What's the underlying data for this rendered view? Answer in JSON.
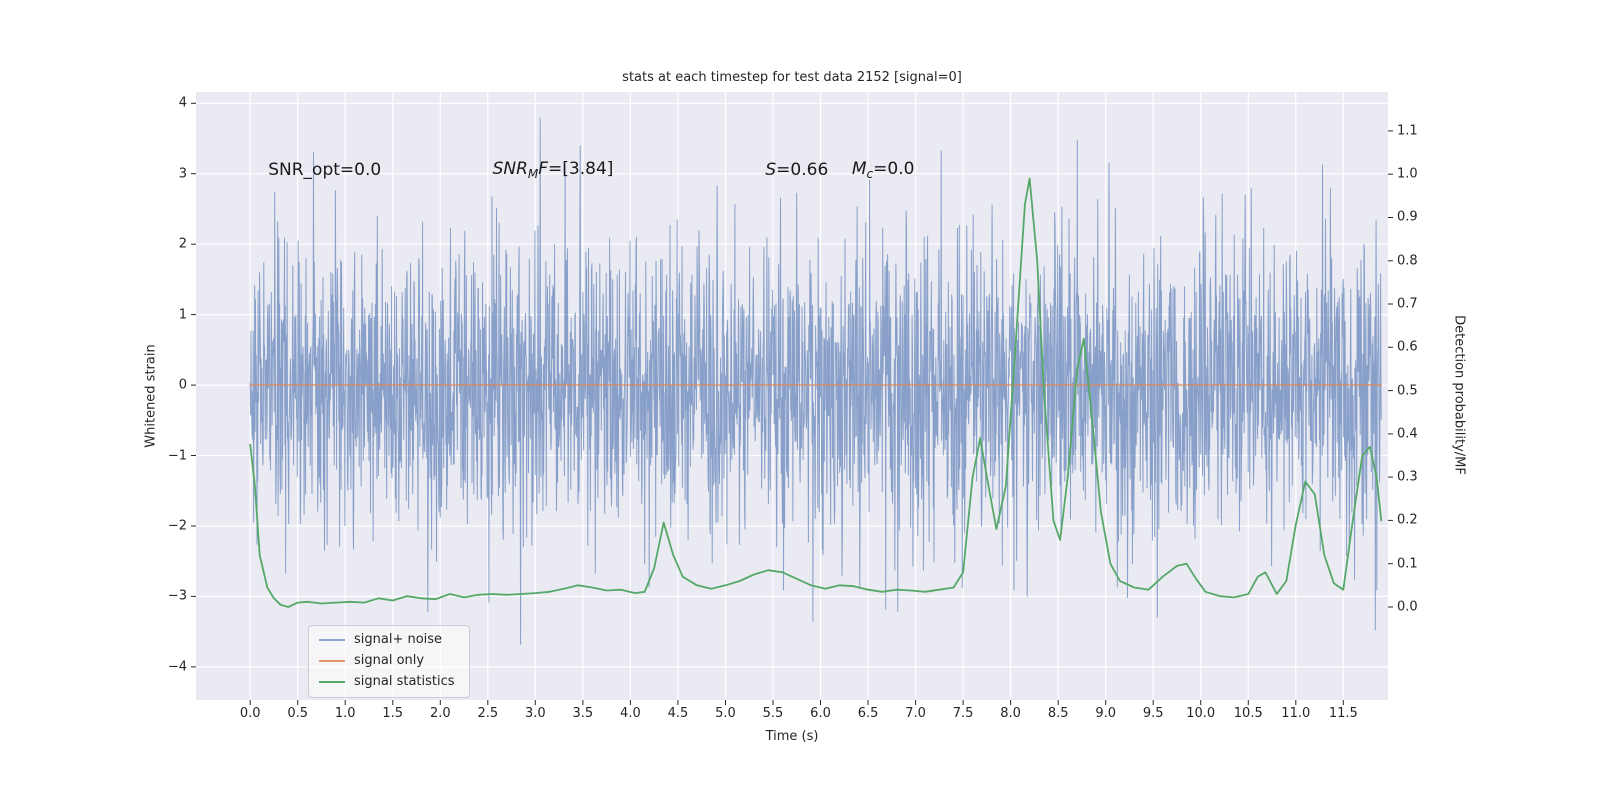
{
  "chart_data": {
    "type": "line",
    "title": "stats at each timestep for test data 2152 [signal=0]",
    "xlabel": "Time (s)",
    "ylabel_left": "Whitened strain",
    "ylabel_right": "Detection probability/MF",
    "xlim": [
      -0.57,
      11.97
    ],
    "ylim_left": [
      -4.47,
      4.16
    ],
    "ylim_right": [
      -0.215,
      1.19
    ],
    "grid": true,
    "legend_position": "lower left",
    "colors": {
      "axes_bg": "#eaeaf2",
      "grid": "#ffffff",
      "tick": "#262626",
      "noise_blue": "#4c72b0",
      "signal_orange": "#dd8452",
      "stats_green": "#55a868"
    },
    "xticks": [
      0,
      0.5,
      1,
      1.5,
      2,
      2.5,
      3,
      3.5,
      4,
      4.5,
      5,
      5.5,
      6,
      6.5,
      7,
      7.5,
      8,
      8.5,
      9,
      9.5,
      10,
      10.5,
      11,
      11.5
    ],
    "xtick_labels": [
      "0.0",
      "0.5",
      "1.0",
      "1.5",
      "2.0",
      "2.5",
      "3.0",
      "3.5",
      "4.0",
      "4.5",
      "5.0",
      "5.5",
      "6.0",
      "6.5",
      "7.0",
      "7.5",
      "8.0",
      "8.5",
      "9.0",
      "9.5",
      "10.0",
      "10.5",
      "11.0",
      "11.5"
    ],
    "yticks_left": [
      4,
      3,
      2,
      1,
      0,
      -1,
      -2,
      -3,
      -4
    ],
    "ytick_labels_left": [
      "4",
      "3",
      "2",
      "1",
      "0",
      "−1",
      "−2",
      "−3",
      "−4"
    ],
    "yticks_right": [
      1.1,
      1.0,
      0.9,
      0.8,
      0.7,
      0.6,
      0.5,
      0.4,
      0.3,
      0.2,
      0.1,
      0.0
    ],
    "ytick_labels_right": [
      "1.1",
      "1.0",
      "0.9",
      "0.8",
      "0.7",
      "0.6",
      "0.5",
      "0.4",
      "0.3",
      "0.2",
      "0.1",
      "0.0"
    ],
    "annotations": [
      {
        "x": 0.19,
        "y": 3.05,
        "parts": [
          {
            "t": "SNR_opt=0.0",
            "s": "normal"
          }
        ]
      },
      {
        "x": 2.55,
        "y": 3.05,
        "parts": [
          {
            "t": "SNR",
            "s": "italic"
          },
          {
            "t": "M",
            "s": "sub"
          },
          {
            "t": "F",
            "s": "italic"
          },
          {
            "t": "=[3.84]",
            "s": "normal"
          }
        ]
      },
      {
        "x": 5.42,
        "y": 3.05,
        "parts": [
          {
            "t": "S",
            "s": "italic"
          },
          {
            "t": "=0.66",
            "s": "normal"
          }
        ]
      },
      {
        "x": 6.33,
        "y": 3.05,
        "parts": [
          {
            "t": "M",
            "s": "italic"
          },
          {
            "t": "c",
            "s": "sub"
          },
          {
            "t": "=0.0",
            "s": "normal"
          }
        ]
      }
    ],
    "series": [
      {
        "name": "signal+ noise",
        "axis": "left",
        "style": "noise",
        "color": "#4c72b0",
        "alpha": 0.62,
        "line_width": 1.0,
        "noise": {
          "seed": 2152,
          "n": 3000,
          "mean": 0,
          "std": 1.05,
          "t_start": 0,
          "t_end": 11.9,
          "clip": 3.85
        }
      },
      {
        "name": "signal only",
        "axis": "left",
        "style": "flat",
        "color": "#dd8452",
        "alpha": 0.85,
        "line_width": 1.4,
        "value": 0,
        "t_start": 0,
        "t_end": 11.9
      },
      {
        "name": "signal statistics",
        "axis": "right",
        "style": "line",
        "color": "#55a868",
        "alpha": 1.0,
        "line_width": 1.8,
        "points": [
          [
            0.0,
            0.375
          ],
          [
            0.05,
            0.28
          ],
          [
            0.1,
            0.12
          ],
          [
            0.18,
            0.045
          ],
          [
            0.25,
            0.02
          ],
          [
            0.32,
            0.005
          ],
          [
            0.4,
            0.0
          ],
          [
            0.5,
            0.01
          ],
          [
            0.6,
            0.012
          ],
          [
            0.75,
            0.008
          ],
          [
            0.9,
            0.01
          ],
          [
            1.05,
            0.012
          ],
          [
            1.2,
            0.01
          ],
          [
            1.35,
            0.02
          ],
          [
            1.5,
            0.015
          ],
          [
            1.65,
            0.025
          ],
          [
            1.8,
            0.02
          ],
          [
            1.95,
            0.018
          ],
          [
            2.1,
            0.03
          ],
          [
            2.25,
            0.022
          ],
          [
            2.4,
            0.028
          ],
          [
            2.55,
            0.03
          ],
          [
            2.7,
            0.028
          ],
          [
            2.85,
            0.03
          ],
          [
            3.0,
            0.032
          ],
          [
            3.15,
            0.035
          ],
          [
            3.3,
            0.042
          ],
          [
            3.45,
            0.05
          ],
          [
            3.6,
            0.045
          ],
          [
            3.75,
            0.038
          ],
          [
            3.9,
            0.04
          ],
          [
            4.05,
            0.032
          ],
          [
            4.15,
            0.035
          ],
          [
            4.25,
            0.09
          ],
          [
            4.35,
            0.195
          ],
          [
            4.45,
            0.12
          ],
          [
            4.55,
            0.07
          ],
          [
            4.7,
            0.05
          ],
          [
            4.85,
            0.042
          ],
          [
            5.0,
            0.05
          ],
          [
            5.15,
            0.06
          ],
          [
            5.3,
            0.075
          ],
          [
            5.45,
            0.085
          ],
          [
            5.6,
            0.08
          ],
          [
            5.75,
            0.065
          ],
          [
            5.9,
            0.05
          ],
          [
            6.05,
            0.042
          ],
          [
            6.2,
            0.05
          ],
          [
            6.35,
            0.048
          ],
          [
            6.5,
            0.04
          ],
          [
            6.65,
            0.035
          ],
          [
            6.8,
            0.04
          ],
          [
            6.95,
            0.038
          ],
          [
            7.1,
            0.035
          ],
          [
            7.25,
            0.04
          ],
          [
            7.4,
            0.045
          ],
          [
            7.5,
            0.08
          ],
          [
            7.6,
            0.3
          ],
          [
            7.68,
            0.39
          ],
          [
            7.75,
            0.3
          ],
          [
            7.85,
            0.18
          ],
          [
            7.95,
            0.28
          ],
          [
            8.05,
            0.6
          ],
          [
            8.15,
            0.93
          ],
          [
            8.2,
            0.99
          ],
          [
            8.28,
            0.8
          ],
          [
            8.35,
            0.5
          ],
          [
            8.45,
            0.2
          ],
          [
            8.52,
            0.155
          ],
          [
            8.6,
            0.3
          ],
          [
            8.7,
            0.55
          ],
          [
            8.77,
            0.62
          ],
          [
            8.85,
            0.45
          ],
          [
            8.95,
            0.22
          ],
          [
            9.05,
            0.1
          ],
          [
            9.15,
            0.06
          ],
          [
            9.3,
            0.045
          ],
          [
            9.45,
            0.04
          ],
          [
            9.6,
            0.07
          ],
          [
            9.75,
            0.095
          ],
          [
            9.85,
            0.1
          ],
          [
            9.95,
            0.065
          ],
          [
            10.05,
            0.035
          ],
          [
            10.2,
            0.025
          ],
          [
            10.35,
            0.022
          ],
          [
            10.5,
            0.03
          ],
          [
            10.6,
            0.07
          ],
          [
            10.68,
            0.08
          ],
          [
            10.8,
            0.03
          ],
          [
            10.9,
            0.06
          ],
          [
            11.0,
            0.19
          ],
          [
            11.1,
            0.29
          ],
          [
            11.2,
            0.26
          ],
          [
            11.3,
            0.12
          ],
          [
            11.4,
            0.055
          ],
          [
            11.5,
            0.04
          ],
          [
            11.6,
            0.2
          ],
          [
            11.7,
            0.35
          ],
          [
            11.78,
            0.37
          ],
          [
            11.85,
            0.3
          ],
          [
            11.9,
            0.2
          ]
        ]
      }
    ]
  }
}
